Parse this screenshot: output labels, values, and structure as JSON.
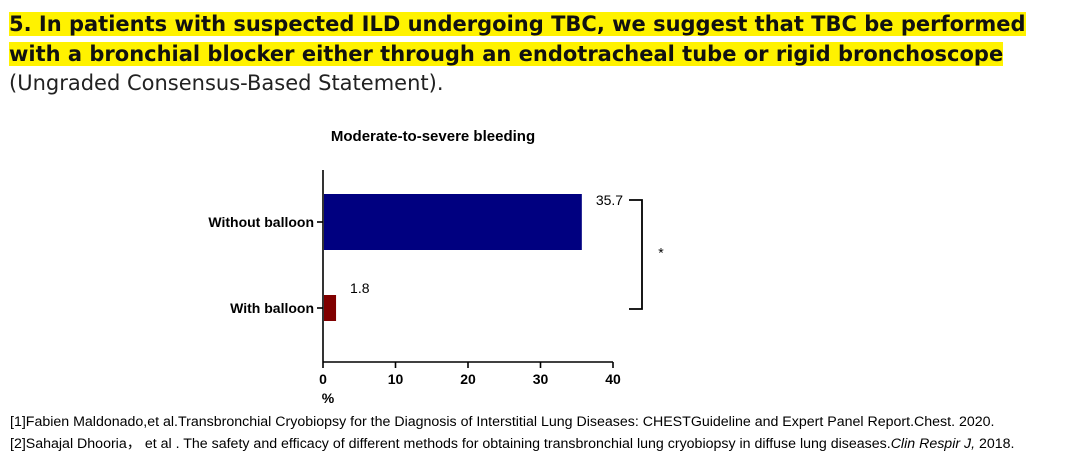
{
  "statement": {
    "number": "5.",
    "highlighted_text": "In patients with suspected ILD undergoing TBC, we suggest that TBC be performed with a bronchial blocker either through an endotracheal tube or rigid bronchoscope",
    "suffix": "(Ungraded Consensus-Based Statement)."
  },
  "chart_data": {
    "type": "bar",
    "orientation": "horizontal",
    "title": "Moderate-to-severe bleeding",
    "categories": [
      "Without balloon",
      "With balloon"
    ],
    "values": [
      35.7,
      1.8
    ],
    "value_labels": [
      "35.7",
      "1.8"
    ],
    "bar_colors": [
      "#000080",
      "#800000"
    ],
    "xlabel": "%",
    "ylabel": "",
    "xlim": [
      0,
      40
    ],
    "xticks": [
      0,
      10,
      20,
      30,
      40
    ],
    "xtick_labels": [
      "0",
      "10",
      "20",
      "30",
      "40"
    ],
    "significance_marker": "*",
    "grid": false
  },
  "references": [
    {
      "text": "[1]Fabien Maldonado,et al.Transbronchial Cryobiopsy for the Diagnosis of Interstitial Lung Diseases: CHESTGuideline and Expert Panel Report.Chest. 2020."
    },
    {
      "text": "[2]Sahajal Dhooria， et al . The safety and efficacy of different methods for obtaining transbronchial lung cryobiopsy in diffuse lung diseases.",
      "journal": "Clin Respir J,",
      "year": " 2018."
    }
  ]
}
